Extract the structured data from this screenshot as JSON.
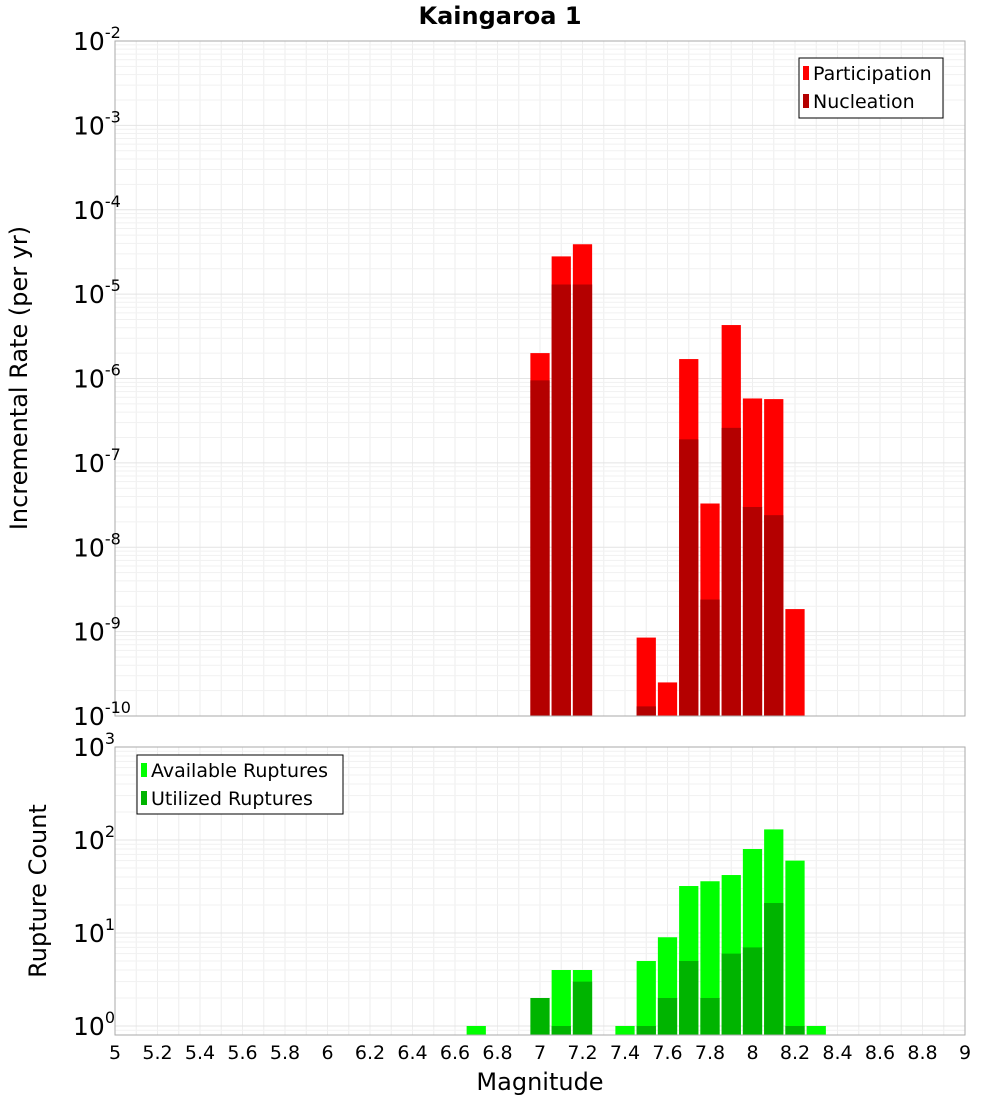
{
  "chart_data": [
    {
      "type": "bar",
      "title": "Kaingaroa 1",
      "xlabel": "",
      "ylabel": "Incremental Rate (per yr)",
      "yscale": "log",
      "xlim": [
        5,
        9
      ],
      "ylim": [
        1e-10,
        0.01
      ],
      "y_tick_exponents": [
        -2,
        -3,
        -4,
        -5,
        -6,
        -7,
        -8,
        -9,
        -10
      ],
      "grid": true,
      "legend_position": "top-right",
      "x": [
        7.0,
        7.1,
        7.2,
        7.5,
        7.6,
        7.7,
        7.8,
        7.9,
        8.0,
        8.1,
        8.2
      ],
      "series": [
        {
          "name": "Participation",
          "color": "#ff0000",
          "values": [
            2e-06,
            2.8e-05,
            3.9e-05,
            8.5e-10,
            2.5e-10,
            1.7e-06,
            3.3e-08,
            4.3e-06,
            5.8e-07,
            5.7e-07,
            1.85e-09
          ]
        },
        {
          "name": "Nucleation",
          "color": "#b40000",
          "values": [
            9.5e-07,
            1.3e-05,
            1.3e-05,
            1.3e-10,
            null,
            1.9e-07,
            2.4e-09,
            2.6e-07,
            3e-08,
            2.4e-08,
            null
          ]
        }
      ]
    },
    {
      "type": "bar",
      "title": "",
      "xlabel": "Magnitude",
      "ylabel": "Rupture Count",
      "yscale": "log",
      "xlim": [
        5,
        9
      ],
      "ylim": [
        0.8,
        1000
      ],
      "y_tick_exponents": [
        3,
        2,
        1,
        0
      ],
      "x_ticks": [
        "5",
        "5.2",
        "5.4",
        "5.6",
        "5.8",
        "6",
        "6.2",
        "6.4",
        "6.6",
        "6.8",
        "7",
        "7.2",
        "7.4",
        "7.6",
        "7.8",
        "8",
        "8.2",
        "8.4",
        "8.6",
        "8.8",
        "9"
      ],
      "grid": true,
      "legend_position": "top-left",
      "x": [
        6.7,
        7.0,
        7.1,
        7.2,
        7.4,
        7.5,
        7.6,
        7.7,
        7.8,
        7.9,
        8.0,
        8.1,
        8.2,
        8.3
      ],
      "series": [
        {
          "name": "Available Ruptures",
          "color": "#00ff00",
          "values": [
            1,
            null,
            4,
            4,
            1,
            5,
            9,
            32,
            36,
            42,
            80,
            130,
            60,
            1
          ]
        },
        {
          "name": "Utilized Ruptures",
          "color": "#00b400",
          "values": [
            null,
            2,
            1,
            3,
            null,
            1,
            2,
            5,
            2,
            6,
            7,
            21,
            1,
            null
          ]
        }
      ]
    }
  ]
}
